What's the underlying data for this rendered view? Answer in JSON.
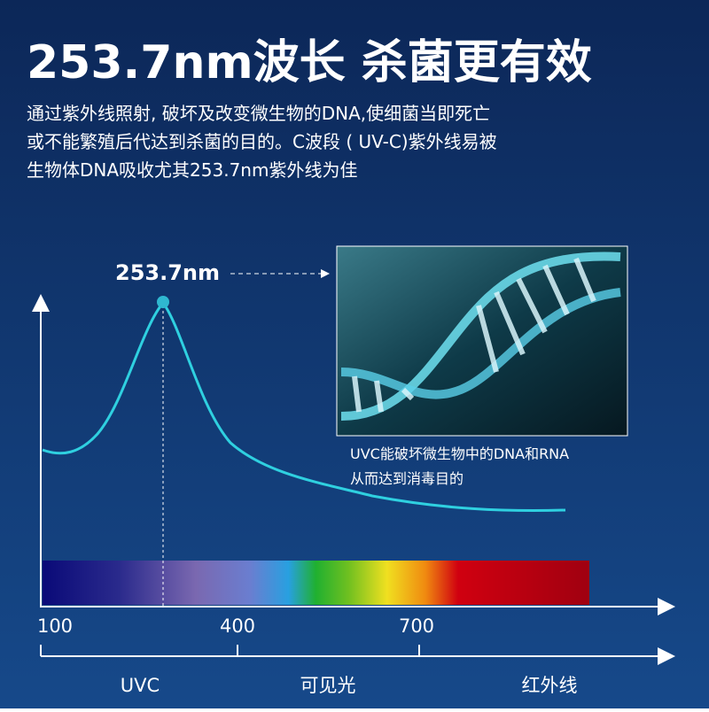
{
  "header": {
    "title": "253.7nm波长 杀菌更有效",
    "description": [
      "通过紫外线照射, 破坏及改变微生物的DNA,使细菌当即死亡",
      "或不能繁殖后代达到杀菌的目的。C波段 ( UV-C)紫外线易被",
      "生物体DNA吸收尤其253.7nm紫外线为佳"
    ]
  },
  "diagram": {
    "peak_label": "253.7nm",
    "wavelength_ticks": [
      "100",
      "400",
      "700"
    ],
    "bands": [
      "UVC",
      "可见光",
      "红外线"
    ],
    "image_caption": [
      "UVC能破坏微生物中的DNA和RNA",
      "从而达到消毒目的"
    ]
  }
}
